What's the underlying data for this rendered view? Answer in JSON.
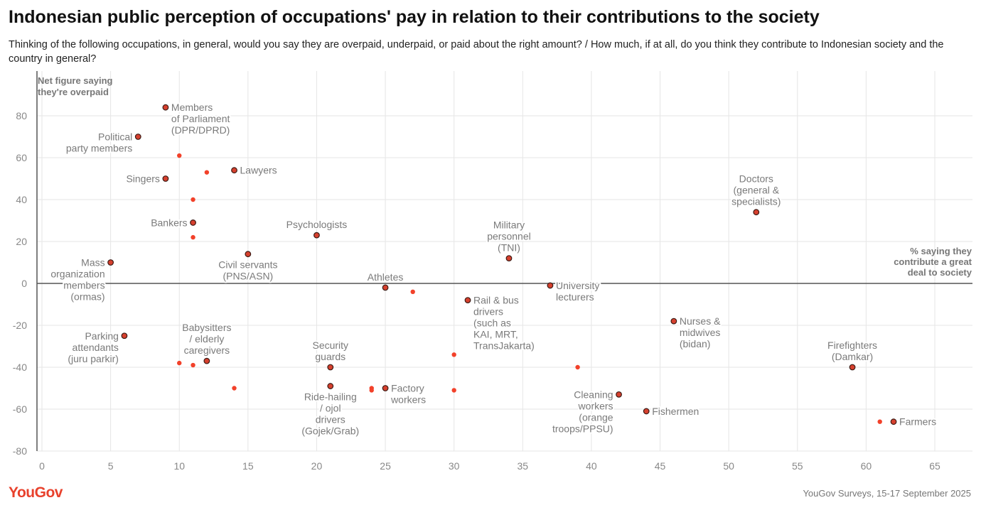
{
  "header": {
    "title": "Indonesian public perception of occupations' pay in relation to their contributions to the society",
    "subtitle": "Thinking of the following occupations, in general, would you say they are overpaid, underpaid, or paid about the right amount? / How much, if at all, do you think they contribute to Indonesian society and the country in general?"
  },
  "footer": {
    "logo": "YouGov",
    "source": "YouGov Surveys, 15-17 September 2025"
  },
  "colors": {
    "point": "#d6402e",
    "point_stroke": "#3a1a14",
    "secondary_point": "#f2412a",
    "grid": "#e6e6e6",
    "axis": "#555555"
  },
  "chart_data": {
    "type": "scatter",
    "title": "Indonesian public perception of occupations' pay in relation to their contributions to the society",
    "xlabel": [
      "% saying they",
      "contribute a great",
      "deal to society"
    ],
    "ylabel": [
      "Net figure saying",
      "they're overpaid"
    ],
    "xlim": [
      -1,
      68
    ],
    "ylim": [
      -80,
      96
    ],
    "xticks": [
      0,
      5,
      10,
      15,
      20,
      25,
      30,
      35,
      40,
      45,
      50,
      55,
      60,
      65
    ],
    "yticks": [
      -80,
      -60,
      -40,
      -20,
      0,
      20,
      40,
      60,
      80
    ],
    "grid": true,
    "points": [
      {
        "label": [
          "Members",
          "of Parliament",
          "(DPR/DPRD)"
        ],
        "x": 9,
        "y": 84,
        "label_pos": "right"
      },
      {
        "label": [
          "Political",
          "party members"
        ],
        "x": 7,
        "y": 70,
        "label_pos": "left"
      },
      {
        "label": [
          "Singers"
        ],
        "x": 9,
        "y": 50,
        "label_pos": "left"
      },
      {
        "label": [
          "Lawyers"
        ],
        "x": 14,
        "y": 54,
        "label_pos": "right"
      },
      {
        "label": [
          "Bankers"
        ],
        "x": 11,
        "y": 29,
        "label_pos": "left"
      },
      {
        "label": [
          "Psychologists"
        ],
        "x": 20,
        "y": 23,
        "label_pos": "above"
      },
      {
        "label": [
          "Mass",
          "organization",
          "members",
          "(ormas)"
        ],
        "x": 5,
        "y": 10,
        "label_pos": "left"
      },
      {
        "label": [
          "Civil servants",
          "(PNS/ASN)"
        ],
        "x": 15,
        "y": 14,
        "label_pos": "below"
      },
      {
        "label": [
          "Military",
          "personnel",
          "(TNI)"
        ],
        "x": 34,
        "y": 12,
        "label_pos": "above"
      },
      {
        "label": [
          "Doctors",
          "(general &",
          "specialists)"
        ],
        "x": 52,
        "y": 34,
        "label_pos": "above"
      },
      {
        "label": [
          "Athletes"
        ],
        "x": 25,
        "y": -2,
        "label_pos": "above"
      },
      {
        "label": [
          "University",
          "lecturers"
        ],
        "x": 37,
        "y": -1,
        "label_pos": "right"
      },
      {
        "label": [
          "Rail & bus",
          "drivers",
          "(such as",
          "KAI, MRT,",
          "TransJakarta)"
        ],
        "x": 31,
        "y": -8,
        "label_pos": "right"
      },
      {
        "label": [
          "Nurses &",
          "midwives",
          "(bidan)"
        ],
        "x": 46,
        "y": -18,
        "label_pos": "right"
      },
      {
        "label": [
          "Parking",
          "attendants",
          "(juru parkir)"
        ],
        "x": 6,
        "y": -25,
        "label_pos": "left"
      },
      {
        "label": [
          "Babysitters",
          "/ elderly",
          "caregivers"
        ],
        "x": 12,
        "y": -37,
        "label_pos": "above"
      },
      {
        "label": [
          "Security",
          "guards"
        ],
        "x": 21,
        "y": -40,
        "label_pos": "above"
      },
      {
        "label": [
          "Ride-hailing",
          "/ ojol",
          "drivers",
          "(Gojek/Grab)"
        ],
        "x": 21,
        "y": -49,
        "label_pos": "below"
      },
      {
        "label": [
          "Factory",
          "workers"
        ],
        "x": 25,
        "y": -50,
        "label_pos": "right"
      },
      {
        "label": [
          "Cleaning",
          "workers",
          "(orange",
          "troops/PPSU)"
        ],
        "x": 42,
        "y": -53,
        "label_pos": "left"
      },
      {
        "label": [
          "Fishermen"
        ],
        "x": 44,
        "y": -61,
        "label_pos": "right"
      },
      {
        "label": [
          "Firefighters",
          "(Damkar)"
        ],
        "x": 59,
        "y": -40,
        "label_pos": "above"
      },
      {
        "label": [
          "Farmers"
        ],
        "x": 62,
        "y": -66,
        "label_pos": "right"
      }
    ],
    "secondary_points": [
      {
        "x": 10,
        "y": 61
      },
      {
        "x": 12,
        "y": 53
      },
      {
        "x": 11,
        "y": 40
      },
      {
        "x": 11,
        "y": 22
      },
      {
        "x": 27,
        "y": -4
      },
      {
        "x": 30,
        "y": -34
      },
      {
        "x": 10,
        "y": -38
      },
      {
        "x": 11,
        "y": -39
      },
      {
        "x": 14,
        "y": -50
      },
      {
        "x": 24,
        "y": -50
      },
      {
        "x": 24,
        "y": -51
      },
      {
        "x": 30,
        "y": -51
      },
      {
        "x": 39,
        "y": -40
      },
      {
        "x": 61,
        "y": -66
      }
    ]
  }
}
